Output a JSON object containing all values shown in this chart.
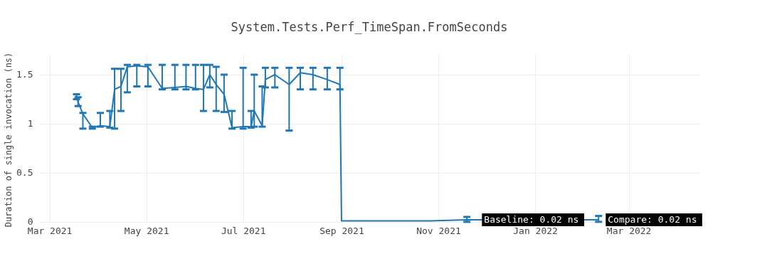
{
  "chart_data": {
    "type": "line",
    "title": "System.Tests.Perf_TimeSpan.FromSeconds",
    "ylabel": "Duration of single invocation (ns)",
    "x": [
      "2021-03-18",
      "2021-03-19",
      "2021-03-22",
      "2021-03-28",
      "2021-04-02",
      "2021-04-08",
      "2021-04-11",
      "2021-04-15",
      "2021-04-19",
      "2021-04-25",
      "2021-05-02",
      "2021-05-11",
      "2021-05-19",
      "2021-05-26",
      "2021-06-01",
      "2021-06-06",
      "2021-06-10",
      "2021-06-14",
      "2021-06-19",
      "2021-06-24",
      "2021-07-01",
      "2021-07-06",
      "2021-07-08",
      "2021-07-13",
      "2021-07-15",
      "2021-07-21",
      "2021-07-30",
      "2021-08-06",
      "2021-08-14",
      "2021-08-23",
      "2021-08-31",
      "2021-09-01",
      "2021-09-14",
      "2021-10-05",
      "2021-10-27",
      "2021-11-19",
      "2022-02-10"
    ],
    "series": [
      {
        "color": "#1f77b4",
        "values": [
          1.28,
          1.22,
          1.1,
          0.96,
          0.98,
          0.97,
          1.35,
          1.38,
          1.58,
          1.59,
          1.58,
          1.36,
          1.37,
          1.38,
          1.36,
          1.35,
          1.5,
          1.4,
          1.3,
          0.96,
          0.97,
          0.97,
          1.13,
          0.98,
          1.45,
          1.5,
          1.4,
          1.52,
          1.5,
          1.45,
          1.4,
          0.01,
          0.01,
          0.01,
          0.01,
          0.02,
          0.02
        ],
        "errors": [
          [
            1.25,
            1.3
          ],
          [
            1.18,
            1.27
          ],
          [
            0.95,
            1.11
          ],
          [
            0.95,
            0.97
          ],
          [
            0.97,
            1.11
          ],
          [
            0.96,
            1.13
          ],
          [
            0.95,
            1.56
          ],
          [
            1.13,
            1.56
          ],
          [
            1.32,
            1.6
          ],
          [
            1.38,
            1.6
          ],
          [
            1.38,
            1.6
          ],
          [
            1.35,
            1.6
          ],
          [
            1.35,
            1.6
          ],
          [
            1.35,
            1.6
          ],
          [
            1.35,
            1.6
          ],
          [
            1.13,
            1.6
          ],
          [
            1.37,
            1.6
          ],
          [
            1.13,
            1.58
          ],
          [
            1.12,
            1.5
          ],
          [
            0.95,
            1.13
          ],
          [
            0.95,
            1.57
          ],
          [
            0.96,
            1.13
          ],
          [
            0.97,
            1.5
          ],
          [
            0.97,
            1.38
          ],
          [
            1.37,
            1.57
          ],
          [
            1.37,
            1.57
          ],
          [
            0.93,
            1.57
          ],
          [
            1.35,
            1.57
          ],
          [
            1.35,
            1.57
          ],
          [
            1.35,
            1.57
          ],
          [
            1.35,
            1.57
          ],
          null,
          null,
          null,
          null,
          [
            0.0,
            0.05
          ],
          [
            0.0,
            0.06
          ]
        ]
      }
    ],
    "xlim": [
      "2021-02-22",
      "2022-04-15"
    ],
    "xticks": [
      {
        "value": "2021-03-01",
        "label": "Mar 2021"
      },
      {
        "value": "2021-05-01",
        "label": "May 2021"
      },
      {
        "value": "2021-07-01",
        "label": "Jul 2021"
      },
      {
        "value": "2021-09-01",
        "label": "Sep 2021"
      },
      {
        "value": "2021-11-01",
        "label": "Nov 2021"
      },
      {
        "value": "2022-01-01",
        "label": "Jan 2022"
      },
      {
        "value": "2022-03-01",
        "label": "Mar 2022"
      }
    ],
    "ylim": [
      -0.03,
      1.71
    ],
    "yticks": [
      0,
      0.5,
      1,
      1.5
    ],
    "annotations": [
      {
        "text": "Baseline: 0.02 ns",
        "x": "2021-11-24",
        "y": 0.02
      },
      {
        "text": "Compare: 0.02 ns",
        "x": "2022-02-10",
        "y": 0.02
      }
    ],
    "grid": true,
    "marker": "none",
    "line_style": "solid"
  }
}
